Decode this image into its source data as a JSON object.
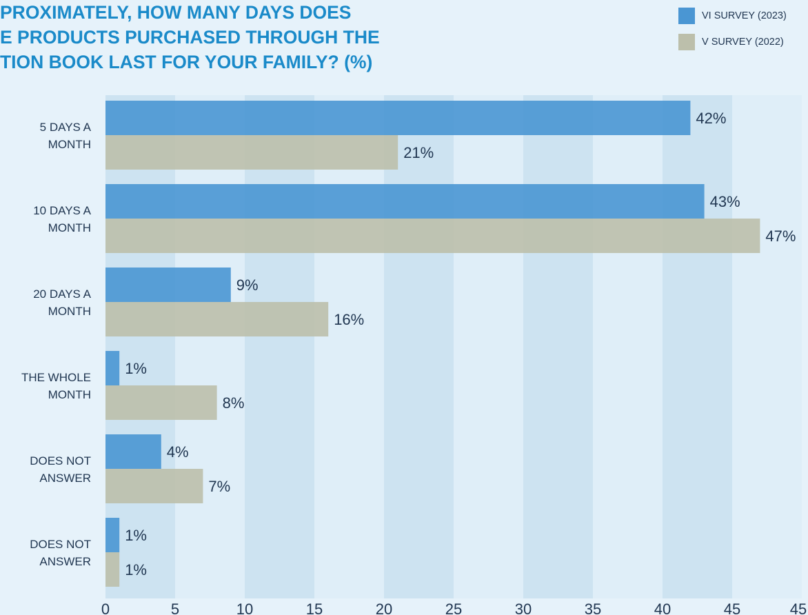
{
  "chart_data": {
    "type": "bar",
    "orientation": "horizontal",
    "title_lines": [
      "PROXIMATELY, HOW MANY DAYS DOES",
      "E PRODUCTS PURCHASED THROUGH THE",
      "TION BOOK LAST FOR YOUR FAMILY? (%)"
    ],
    "categories": [
      [
        "5 DAYS A",
        "MONTH"
      ],
      [
        "10 DAYS A",
        "MONTH"
      ],
      [
        "20 DAYS A",
        "MONTH"
      ],
      [
        "THE WHOLE",
        "MONTH"
      ],
      [
        "DOES NOT",
        "ANSWER"
      ],
      [
        "DOES NOT",
        "ANSWER"
      ]
    ],
    "series": [
      {
        "name": "VI SURVEY (2023)",
        "color": "#4a96d3",
        "values": [
          42,
          43,
          9,
          1,
          4,
          1
        ],
        "labels": [
          "42%",
          "43%",
          "9%",
          "1%",
          "4%",
          "1%"
        ]
      },
      {
        "name": "V SURVEY (2022)",
        "color": "#bcbfab",
        "values": [
          21,
          47,
          16,
          8,
          7,
          1
        ],
        "labels": [
          "21%",
          "47%",
          "16%",
          "8%",
          "7%",
          "1%"
        ]
      }
    ],
    "x_ticks": [
      "0",
      "5",
      "10",
      "15",
      "20",
      "25",
      "30",
      "35",
      "40",
      "45",
      "45"
    ],
    "xlim": [
      0,
      50
    ],
    "grid": "alternating vertical bands",
    "legend_position": "top-right"
  }
}
